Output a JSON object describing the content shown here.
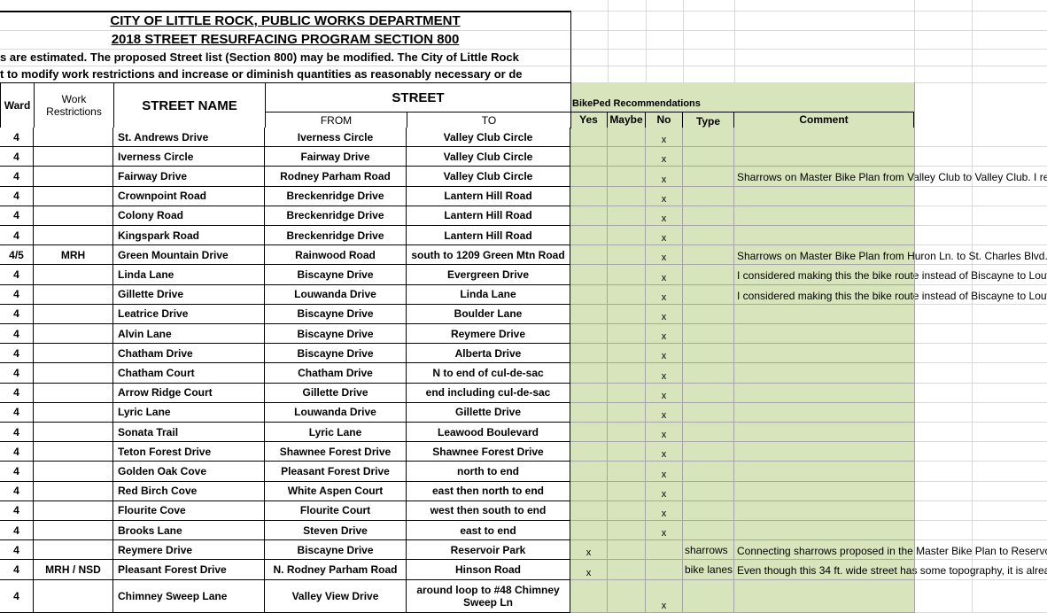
{
  "header": {
    "title": "CITY OF LITTLE ROCK, PUBLIC WORKS DEPARTMENT",
    "subtitle": "2018 STREET RESURFACING PROGRAM SECTION 800",
    "note_line_1": "s are estimated.  The proposed Street list (Section 800) may be modified.  The City of Little Rock",
    "note_line_2": "t to modify work restrictions and increase or diminish quantities as reasonably necessary or de"
  },
  "columns": {
    "ward": "Ward",
    "work_restrictions": "Work Restrictions",
    "street_name": "STREET NAME",
    "street": "STREET",
    "from": "FROM",
    "to": "TO",
    "bikeped": "BikePed Recommendations",
    "yes": "Yes",
    "maybe": "Maybe",
    "no": "No",
    "type": "Type",
    "comment": "Comment"
  },
  "rows": [
    {
      "ward": "4",
      "street": "St. Andrews Drive",
      "from": "Iverness Circle",
      "to": "Valley Club Circle",
      "no": "x"
    },
    {
      "ward": "4",
      "street": "Iverness Circle",
      "from": "Fairway Drive",
      "to": "Valley Club Circle",
      "no": "x"
    },
    {
      "ward": "4",
      "street": "Fairway Drive",
      "from": "Rodney Parham Road",
      "to": "Valley Club Circle",
      "no": "x",
      "comment": "Sharrows on Master Bike Plan from Valley Club to Valley Club.  I re"
    },
    {
      "ward": "4",
      "street": "Crownpoint Road",
      "from": "Breckenridge Drive",
      "to": "Lantern Hill Road",
      "no": "x"
    },
    {
      "ward": "4",
      "street": "Colony Road",
      "from": "Breckenridge Drive",
      "to": "Lantern Hill Road",
      "no": "x"
    },
    {
      "ward": "4",
      "street": "Kingspark Road",
      "from": "Breckenridge Drive",
      "to": "Lantern Hill Road",
      "no": "x"
    },
    {
      "ward": "4/5",
      "work": "MRH",
      "street": "Green Mountain Drive",
      "from": "Rainwood Road",
      "to": "south to 1209 Green Mtn Road",
      "no": "x",
      "comment": "Sharrows on Master Bike Plan from Huron Ln. to St. Charles Blvd."
    },
    {
      "ward": "4",
      "street": "Linda Lane",
      "from": "Biscayne Drive",
      "to": "Evergreen Drive",
      "no": "x",
      "comment": "I considered making this the bike route instead of Biscayne to Louw"
    },
    {
      "ward": "4",
      "street": "Gillette Drive",
      "from": "Louwanda Drive",
      "to": "Linda Lane",
      "no": "x",
      "comment": "I considered making this the bike route instead of Biscayne to Louw"
    },
    {
      "ward": "4",
      "street": "Leatrice Drive",
      "from": "Biscayne Drive",
      "to": "Boulder Lane",
      "no": "x"
    },
    {
      "ward": "4",
      "street": "Alvin Lane",
      "from": "Biscayne Drive",
      "to": "Reymere Drive",
      "no": "x"
    },
    {
      "ward": "4",
      "street": "Chatham Drive",
      "from": "Biscayne Drive",
      "to": "Alberta Drive",
      "no": "x"
    },
    {
      "ward": "4",
      "street": "Chatham Court",
      "from": "Chatham Drive",
      "to": "N to end of cul-de-sac",
      "no": "x"
    },
    {
      "ward": "4",
      "street": "Arrow Ridge Court",
      "from": "Gillette Drive",
      "to": "end including cul-de-sac",
      "no": "x"
    },
    {
      "ward": "4",
      "street": "Lyric Lane",
      "from": "Louwanda Drive",
      "to": "Gillette Drive",
      "no": "x"
    },
    {
      "ward": "4",
      "street": "Sonata Trail",
      "from": "Lyric Lane",
      "to": "Leawood Boulevard",
      "no": "x"
    },
    {
      "ward": "4",
      "street": "Teton Forest Drive",
      "from": "Shawnee Forest Drive",
      "to": "Shawnee Forest Drive",
      "no": "x"
    },
    {
      "ward": "4",
      "street": "Golden Oak Cove",
      "from": "Pleasant Forest Drive",
      "to": "north to end",
      "no": "x"
    },
    {
      "ward": "4",
      "street": "Red Birch Cove",
      "from": "White Aspen Court",
      "to": "east then north to end",
      "no": "x"
    },
    {
      "ward": "4",
      "street": "Flourite Cove",
      "from": "Flourite Court",
      "to": "west then south to end",
      "no": "x"
    },
    {
      "ward": "4",
      "street": "Brooks Lane",
      "from": "Steven Drive",
      "to": "east to end",
      "no": "x"
    },
    {
      "ward": "4",
      "street": "Reymere Drive",
      "from": "Biscayne Drive",
      "to": "Reservoir Park",
      "yes": "x",
      "type": "sharrows",
      "comment": "Connecting sharrows proposed in the Master Bike Plan to Reservo"
    },
    {
      "ward": "4",
      "work": "MRH / NSD",
      "street": "Pleasant Forest Drive",
      "from": "N. Rodney Parham Road",
      "to": "Hinson Road",
      "yes": "x",
      "type": "bike lanes",
      "comment": "Even though this 34 ft. wide street has some topography, it is alrea"
    },
    {
      "ward": "4",
      "street": "Chimney Sweep Lane",
      "from": "Valley View Drive",
      "to": "around loop to #48 Chimney Sweep Ln",
      "no": "x"
    }
  ]
}
